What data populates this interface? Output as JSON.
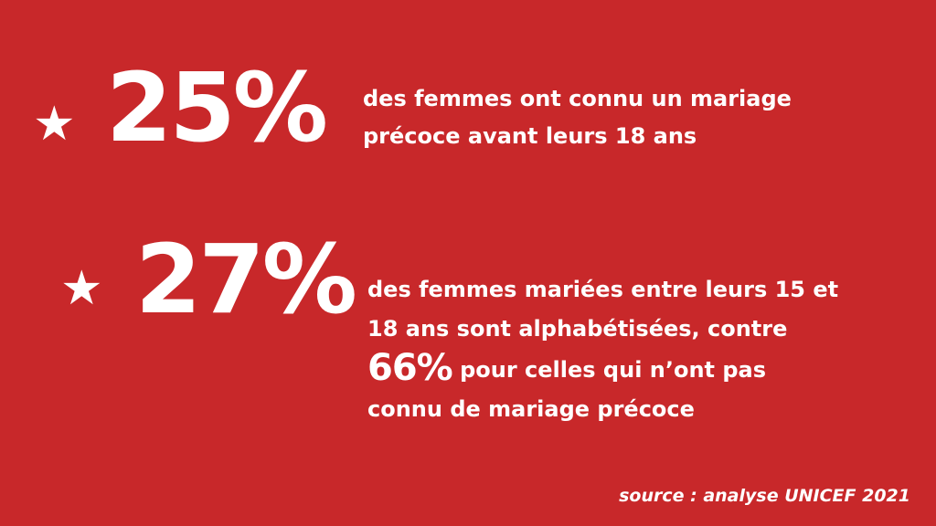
{
  "background_color": "#c8282a",
  "text_color": "#ffffff",
  "stat1": {
    "icon": "star-icon",
    "value": "25%",
    "line1": "des femmes ont connu un mariage",
    "line2": "précoce avant leurs 18 ans"
  },
  "stat2": {
    "icon": "star-icon",
    "value": "27%",
    "line1": "des femmes mariées entre leurs 15 et",
    "line2": "18 ans sont alphabétisées, contre",
    "inline_value": "66%",
    "line3_rest": " pour celles qui n’ont pas",
    "line4": "connu de mariage précoce"
  },
  "source": "source : analyse UNICEF 2021"
}
